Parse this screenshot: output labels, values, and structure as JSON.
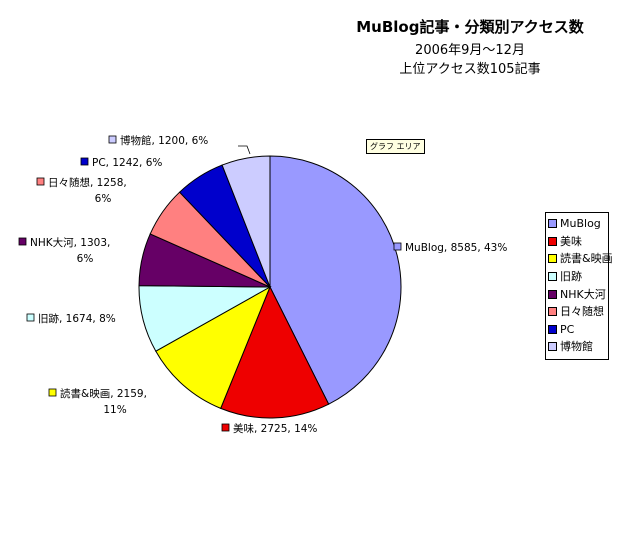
{
  "chart_data": {
    "type": "pie",
    "title": "MuBlog記事・分類別アクセス数",
    "subtitle": [
      "2006年9月〜12月",
      "上位アクセス数105記事"
    ],
    "slices": [
      {
        "label": "MuBlog",
        "value": 8585,
        "percent": "43%",
        "color": "#9999ff"
      },
      {
        "label": "美味",
        "value": 2725,
        "percent": "14%",
        "color": "#ee0000"
      },
      {
        "label": "読書&映画",
        "value": 2159,
        "percent": "11%",
        "color": "#ffff00"
      },
      {
        "label": "旧跡",
        "value": 1674,
        "percent": "8%",
        "color": "#ccffff"
      },
      {
        "label": "NHK大河",
        "value": 1303,
        "percent": "6%",
        "color": "#660066"
      },
      {
        "label": "日々随想",
        "value": 1258,
        "percent": "6%",
        "color": "#ff8080"
      },
      {
        "label": "PC",
        "value": 1242,
        "percent": "6%",
        "color": "#0000cc"
      },
      {
        "label": "博物館",
        "value": 1200,
        "percent": "6%",
        "color": "#ccccff"
      }
    ],
    "legend_position": "right"
  },
  "tooltip": "グラフ エリア"
}
